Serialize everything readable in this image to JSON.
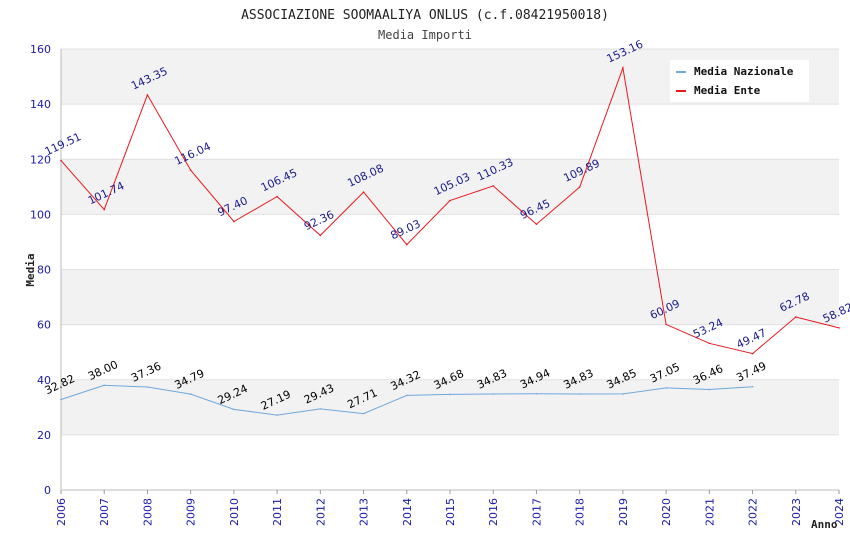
{
  "chart_data": {
    "type": "line",
    "title": "ASSOCIAZIONE SOOMAALIYA ONLUS (c.f.08421950018)",
    "subtitle": "Media Importi",
    "xlabel": "Anno",
    "ylabel": "Media",
    "ylim": [
      0,
      160
    ],
    "yticks": [
      "0",
      "20",
      "40",
      "60",
      "80",
      "100",
      "120",
      "140",
      "160"
    ],
    "categories": [
      "2006",
      "2007",
      "2008",
      "2009",
      "2010",
      "2011",
      "2012",
      "2013",
      "2014",
      "2015",
      "2016",
      "2017",
      "2018",
      "2019",
      "2020",
      "2021",
      "2022",
      "2023",
      "2024"
    ],
    "legend_position": "top-right",
    "series": [
      {
        "name": "Media Nazionale",
        "color": "#6fa8dc",
        "label_color": "#000000",
        "values": [
          32.82,
          38.0,
          37.36,
          34.79,
          29.24,
          27.19,
          29.43,
          27.71,
          34.32,
          34.68,
          34.83,
          34.94,
          34.83,
          34.85,
          37.05,
          36.46,
          37.49,
          null,
          null
        ],
        "labels": [
          "32.82",
          "38.00",
          "37.36",
          "34.79",
          "29.24",
          "27.19",
          "29.43",
          "27.71",
          "34.32",
          "34.68",
          "34.83",
          "34.94",
          "34.83",
          "34.85",
          "37.05",
          "36.46",
          "37.49",
          null,
          null
        ]
      },
      {
        "name": "Media Ente",
        "color": "#e8191e",
        "label_color": "#1a1a8c",
        "values": [
          119.51,
          101.74,
          143.35,
          116.04,
          97.4,
          106.45,
          92.36,
          108.08,
          89.03,
          105.03,
          110.33,
          96.45,
          109.89,
          153.16,
          60.09,
          53.24,
          49.47,
          62.78,
          58.82
        ],
        "labels": [
          "119.51",
          "101.74",
          "143.35",
          "116.04",
          "97.40",
          "106.45",
          "92.36",
          "108.08",
          "89.03",
          "105.03",
          "110.33",
          "96.45",
          "109.89",
          "153.16",
          "60.09",
          "53.24",
          "49.47",
          "62.78",
          "58.82"
        ]
      }
    ]
  }
}
